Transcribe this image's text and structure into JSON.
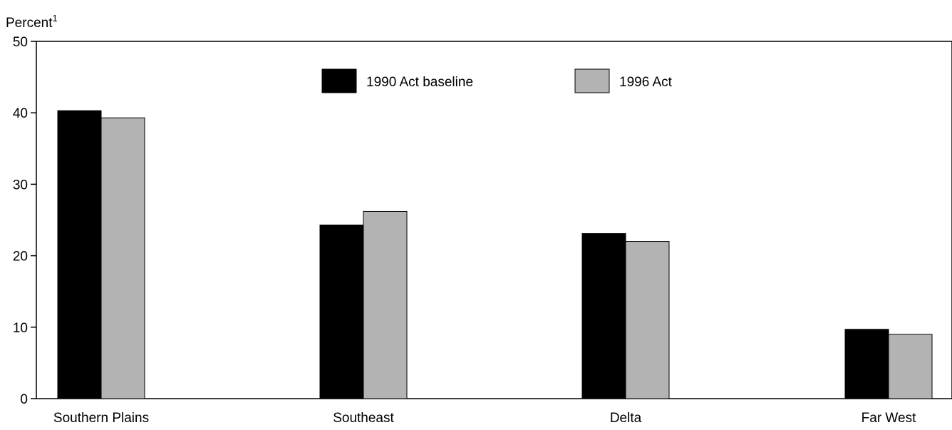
{
  "chart_data": {
    "type": "bar",
    "title": "",
    "ylabel": "Percent",
    "ylabel_superscript": "1",
    "xlabel": "",
    "categories": [
      "Southern Plains",
      "Southeast",
      "Delta",
      "Far West"
    ],
    "series": [
      {
        "name": "1990 Act baseline",
        "values": [
          40.3,
          24.3,
          23.1,
          9.7
        ],
        "color": "#000000"
      },
      {
        "name": "1996 Act",
        "values": [
          39.3,
          26.2,
          22.0,
          9.0
        ],
        "color": "#b3b3b3"
      }
    ],
    "ylim": [
      0,
      50
    ],
    "yticks": [
      0,
      10,
      20,
      30,
      40,
      50
    ],
    "grid": false,
    "legend_placement": "top-center"
  }
}
